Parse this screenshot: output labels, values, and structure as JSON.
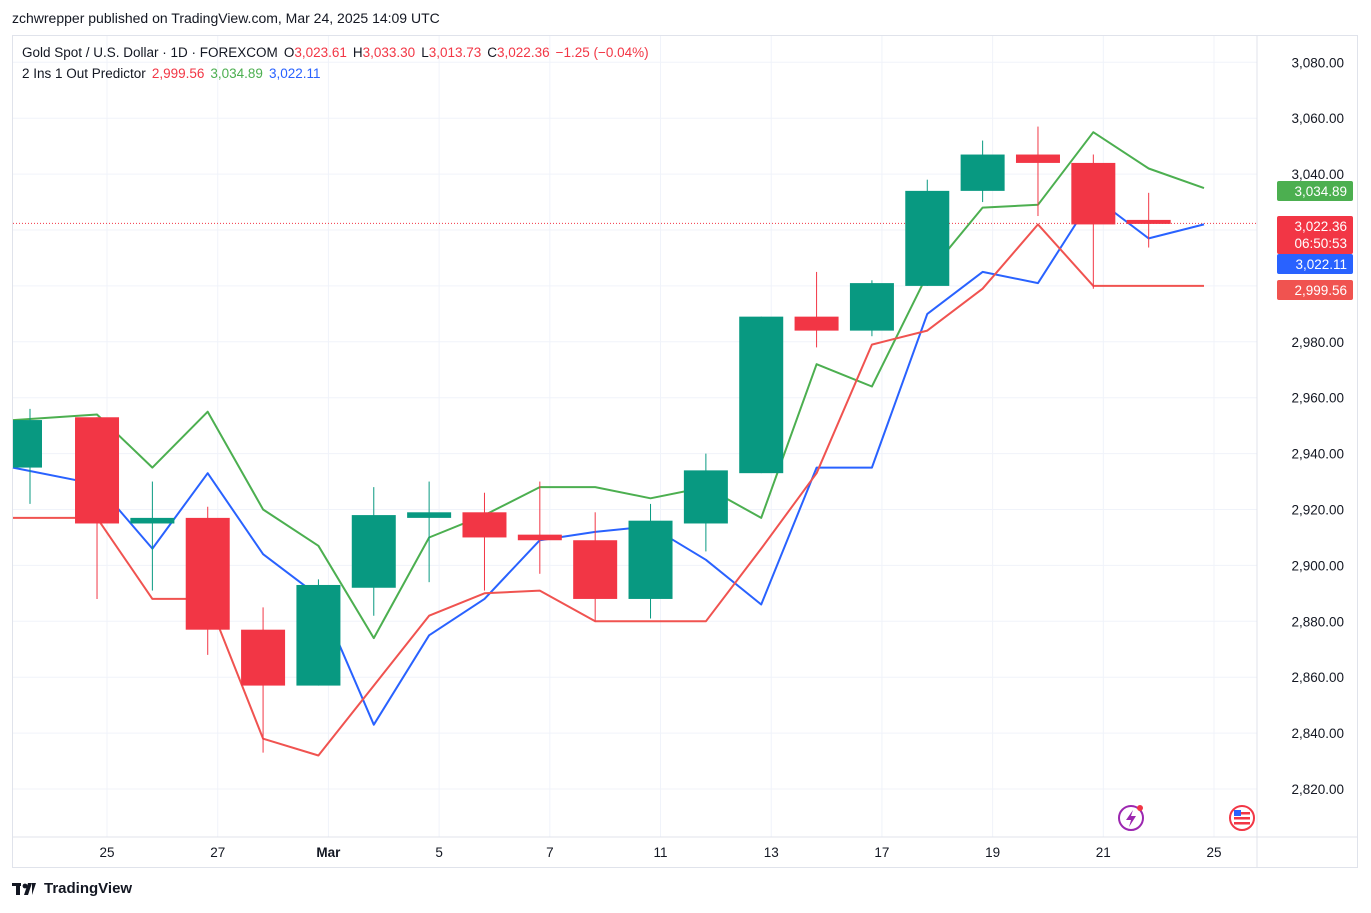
{
  "header": {
    "publisher_line": "zchwrepper published on TradingView.com, Mar 24, 2025 14:09 UTC"
  },
  "legend": {
    "symbol": "Gold Spot / U.S. Dollar · 1D · FOREXCOM",
    "o_key": "O",
    "o_val": "3,023.61",
    "h_key": "H",
    "h_val": "3,033.30",
    "l_key": "L",
    "l_val": "3,013.73",
    "c_key": "C",
    "c_val": "3,022.36",
    "change": "−1.25 (−0.04%)",
    "indicator_name": "2 Ins 1 Out Predictor",
    "ind_red": "2,999.56",
    "ind_green": "3,034.89",
    "ind_blue": "3,022.11"
  },
  "price_badges": {
    "green": "3,034.89",
    "last": "3,022.36",
    "countdown": "06:50:53",
    "blue": "3,022.11",
    "red": "2,999.56"
  },
  "footer": {
    "brand": "TradingView"
  },
  "colors": {
    "up": "#089981",
    "down": "#f23645",
    "green_line": "#4caf50",
    "blue_line": "#2962ff",
    "red_line": "#f05350"
  },
  "icons": [
    "tradingview-logo-icon",
    "lightning-icon",
    "us-flag-icon"
  ],
  "chart_data": {
    "type": "candlestick",
    "yticks": [
      "3,080.00",
      "3,060.00",
      "3,040.00",
      "2,980.00",
      "2,960.00",
      "2,940.00",
      "2,920.00",
      "2,900.00",
      "2,880.00",
      "2,860.00",
      "2,840.00",
      "2,820.00"
    ],
    "ytick_values": [
      3080,
      3060,
      3040,
      2980,
      2960,
      2940,
      2920,
      2900,
      2880,
      2860,
      2840,
      2820
    ],
    "xticks": [
      {
        "label": "25",
        "i": 1
      },
      {
        "label": "27",
        "i": 3
      },
      {
        "label": "Mar",
        "i": 5
      },
      {
        "label": "5",
        "i": 7
      },
      {
        "label": "7",
        "i": 9
      },
      {
        "label": "11",
        "i": 11
      },
      {
        "label": "13",
        "i": 13
      },
      {
        "label": "17",
        "i": 15
      },
      {
        "label": "19",
        "i": 17
      },
      {
        "label": "21",
        "i": 19
      },
      {
        "label": "25",
        "i": 21
      }
    ],
    "candles": [
      {
        "o": 2935,
        "h": 2956,
        "l": 2922,
        "c": 2952
      },
      {
        "o": 2953,
        "h": 2953,
        "l": 2888,
        "c": 2915
      },
      {
        "o": 2915,
        "h": 2930,
        "l": 2891,
        "c": 2917
      },
      {
        "o": 2917,
        "h": 2921,
        "l": 2868,
        "c": 2877
      },
      {
        "o": 2877,
        "h": 2885,
        "l": 2833,
        "c": 2857
      },
      {
        "o": 2857,
        "h": 2895,
        "l": 2857,
        "c": 2893
      },
      {
        "o": 2892,
        "h": 2928,
        "l": 2882,
        "c": 2918
      },
      {
        "o": 2917,
        "h": 2930,
        "l": 2894,
        "c": 2919
      },
      {
        "o": 2919,
        "h": 2926,
        "l": 2891,
        "c": 2910
      },
      {
        "o": 2911,
        "h": 2930,
        "l": 2897,
        "c": 2909
      },
      {
        "o": 2909,
        "h": 2919,
        "l": 2880,
        "c": 2888
      },
      {
        "o": 2888,
        "h": 2922,
        "l": 2881,
        "c": 2916
      },
      {
        "o": 2915,
        "h": 2940,
        "l": 2905,
        "c": 2934
      },
      {
        "o": 2933,
        "h": 2989,
        "l": 2933,
        "c": 2989
      },
      {
        "o": 2989,
        "h": 3005,
        "l": 2978,
        "c": 2984
      },
      {
        "o": 2984,
        "h": 3002,
        "l": 2982,
        "c": 3001
      },
      {
        "o": 3000,
        "h": 3038,
        "l": 3000,
        "c": 3034
      },
      {
        "o": 3034,
        "h": 3052,
        "l": 3030,
        "c": 3047
      },
      {
        "o": 3047,
        "h": 3057,
        "l": 3025,
        "c": 3044
      },
      {
        "o": 3044,
        "h": 3047,
        "l": 2999,
        "c": 3022
      },
      {
        "o": 3023.61,
        "h": 3033.3,
        "l": 3013.73,
        "c": 3022.36
      }
    ],
    "series": [
      {
        "color": "green",
        "values": [
          2952,
          2954,
          2935,
          2955,
          2920,
          2907,
          2874,
          2910,
          2918,
          2928,
          2928,
          2924,
          2928,
          2917,
          2972,
          2964,
          3004,
          3028,
          3029,
          3055,
          3042,
          3035
        ]
      },
      {
        "color": "blue",
        "values": [
          2935,
          2929,
          2906,
          2933,
          2904,
          2889,
          2843,
          2875,
          2888,
          2909,
          2912,
          2914,
          2902,
          2886,
          2935,
          2935,
          2990,
          3005,
          3001,
          3032,
          3017,
          3022
        ]
      },
      {
        "color": "red",
        "values": [
          2917,
          2917,
          2888,
          2888,
          2838,
          2832,
          2857,
          2882,
          2890,
          2891,
          2880,
          2880,
          2880,
          2906,
          2933,
          2979,
          2984,
          2999,
          3022,
          3000,
          3000,
          3000
        ]
      }
    ],
    "last_price": 3022.36,
    "grid": true
  }
}
